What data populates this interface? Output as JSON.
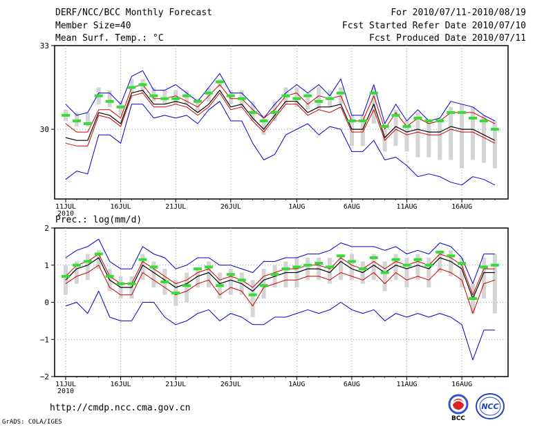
{
  "header": {
    "left": [
      "DERF/NCC/BCC Monthly Forecast",
      "Member Size=40",
      "Mean Surf. Temp.: °C"
    ],
    "right": [
      "For 2010/07/11-2010/08/19",
      "Fcst Started Refer Date 2010/07/10",
      "Fcst Produced Date 2010/07/11"
    ]
  },
  "footer": {
    "url": "http://cmdp.ncc.cma.gov.cn",
    "credit": "GrADS: COLA/IGES",
    "logo_left_text": "BCC",
    "logo_right_text": "NCC"
  },
  "colors": {
    "box": "#d4d4d4",
    "median": "#000000",
    "quartile": "#cc0000",
    "extreme": "#0000cc",
    "observed": "#33dd33",
    "grid": "#999999"
  },
  "chart_data": [
    {
      "type": "line",
      "title": "Mean Surf. Temp.: °C",
      "x_tick_labels": [
        "11JUL",
        "16JUL",
        "21JUL",
        "26JUL",
        "1AUG",
        "6AUG",
        "11AUG",
        "16AUG"
      ],
      "x_tick_days": [
        0,
        5,
        10,
        15,
        21,
        26,
        31,
        36
      ],
      "x_sublabel": "2010",
      "ylim": [
        27.5,
        33
      ],
      "y_ticks": [
        30,
        33
      ],
      "series": [
        {
          "name": "max",
          "values": [
            30.9,
            30.5,
            30.6,
            31.3,
            31.3,
            30.9,
            31.9,
            32.1,
            31.4,
            31.4,
            31.6,
            31.3,
            31.0,
            31.5,
            32.0,
            31.3,
            31.3,
            30.9,
            30.4,
            30.9,
            31.3,
            31.6,
            31.3,
            31.6,
            31.2,
            31.8,
            30.5,
            30.5,
            31.6,
            30.2,
            30.9,
            30.3,
            30.7,
            30.3,
            30.4,
            31.0,
            30.9,
            30.8,
            30.5,
            30.3
          ]
        },
        {
          "name": "upper_quartile",
          "values": [
            30.2,
            29.9,
            29.9,
            30.7,
            30.7,
            30.4,
            31.5,
            31.6,
            31.1,
            31.1,
            31.2,
            31.0,
            30.8,
            31.2,
            31.6,
            31.1,
            31.1,
            30.7,
            30.4,
            30.7,
            31.2,
            31.3,
            30.9,
            31.2,
            31.1,
            31.2,
            30.3,
            30.3,
            31.2,
            30.0,
            30.6,
            30.1,
            30.4,
            30.2,
            30.3,
            30.6,
            30.6,
            30.6,
            30.4,
            30.2
          ]
        },
        {
          "name": "median",
          "values": [
            29.7,
            29.6,
            29.6,
            30.6,
            30.5,
            30.2,
            31.3,
            31.4,
            30.9,
            30.9,
            31.0,
            30.9,
            30.6,
            30.9,
            31.4,
            30.8,
            30.9,
            30.4,
            30.0,
            30.5,
            31.0,
            31.0,
            30.6,
            30.8,
            30.8,
            30.9,
            30.0,
            30.0,
            30.9,
            29.7,
            30.1,
            29.9,
            30.0,
            29.9,
            29.9,
            30.1,
            30.0,
            30.0,
            29.8,
            29.6
          ]
        },
        {
          "name": "lower_quartile",
          "values": [
            29.5,
            29.4,
            29.4,
            30.5,
            30.4,
            30.1,
            31.2,
            31.3,
            30.8,
            30.8,
            30.9,
            30.8,
            30.5,
            30.8,
            31.3,
            30.7,
            30.8,
            30.3,
            29.9,
            30.4,
            30.9,
            30.9,
            30.5,
            30.7,
            30.6,
            30.8,
            29.9,
            29.9,
            30.7,
            29.6,
            30.0,
            29.8,
            29.9,
            29.8,
            29.8,
            30.0,
            29.9,
            29.9,
            29.7,
            29.5
          ]
        },
        {
          "name": "min",
          "values": [
            28.2,
            28.5,
            28.4,
            29.8,
            29.8,
            29.5,
            30.9,
            30.9,
            30.4,
            30.5,
            30.4,
            30.5,
            30.2,
            30.7,
            31.0,
            30.3,
            30.3,
            29.5,
            28.9,
            29.1,
            29.8,
            30.0,
            30.2,
            29.8,
            30.1,
            30.0,
            29.2,
            29.2,
            29.6,
            28.9,
            29.0,
            28.7,
            28.3,
            28.4,
            28.3,
            28.1,
            28.0,
            28.3,
            28.2,
            28.0
          ]
        },
        {
          "name": "observed",
          "values": [
            30.5,
            30.3,
            30.2,
            31.2,
            31.0,
            30.8,
            31.5,
            31.6,
            31.2,
            31.1,
            31.1,
            31.2,
            31.0,
            31.3,
            31.7,
            31.2,
            31.1,
            30.6,
            30.3,
            30.6,
            31.2,
            31.1,
            31.2,
            31.0,
            31.1,
            31.3,
            30.3,
            30.3,
            31.3,
            30.1,
            30.5,
            30.1,
            30.4,
            30.3,
            30.3,
            30.6,
            30.6,
            30.4,
            30.3,
            30.0
          ]
        }
      ],
      "box_range": {
        "low": [
          30.3,
          30.1,
          30.1,
          30.9,
          30.8,
          30.5,
          31.3,
          31.3,
          31.0,
          30.9,
          30.9,
          30.9,
          30.6,
          31.0,
          31.5,
          30.9,
          30.8,
          30.3,
          29.8,
          30.3,
          30.9,
          30.8,
          30.7,
          30.7,
          30.8,
          30.9,
          29.4,
          29.4,
          30.2,
          29.2,
          29.4,
          29.2,
          29.0,
          29.0,
          28.9,
          28.9,
          28.6,
          28.9,
          28.8,
          28.6
        ],
        "high": [
          30.7,
          30.6,
          30.6,
          31.5,
          31.4,
          31.0,
          31.8,
          31.8,
          31.5,
          31.4,
          31.4,
          31.4,
          31.1,
          31.5,
          31.8,
          31.4,
          31.4,
          31.0,
          30.5,
          31.0,
          31.5,
          31.5,
          31.3,
          31.5,
          31.4,
          31.5,
          30.5,
          30.5,
          31.5,
          30.0,
          30.7,
          30.3,
          30.6,
          30.3,
          30.4,
          30.8,
          30.9,
          30.8,
          30.5,
          30.3
        ]
      }
    },
    {
      "type": "line",
      "title": "Prec.: log(mm/d)",
      "x_tick_labels": [
        "11JUL",
        "16JUL",
        "21JUL",
        "26JUL",
        "1AUG",
        "6AUG",
        "11AUG",
        "16AUG"
      ],
      "x_tick_days": [
        0,
        5,
        10,
        15,
        21,
        26,
        31,
        36
      ],
      "x_sublabel": "2010",
      "ylim": [
        -2,
        2
      ],
      "y_ticks": [
        -2,
        -1,
        0,
        1,
        2
      ],
      "series": [
        {
          "name": "max",
          "values": [
            1.2,
            1.4,
            1.5,
            1.7,
            1.1,
            0.9,
            0.9,
            1.5,
            1.3,
            1.2,
            0.9,
            1.0,
            1.2,
            1.2,
            1.0,
            1.0,
            0.9,
            0.8,
            1.1,
            1.1,
            1.2,
            1.2,
            1.3,
            1.3,
            1.4,
            1.6,
            1.5,
            1.5,
            1.5,
            1.4,
            1.5,
            1.3,
            1.4,
            1.3,
            1.6,
            1.5,
            1.2,
            0.5,
            1.3,
            1.3
          ]
        },
        {
          "name": "upper_quartile",
          "values": [
            0.7,
            1.0,
            1.1,
            1.3,
            0.7,
            0.5,
            0.5,
            1.1,
            0.9,
            0.7,
            0.5,
            0.6,
            0.8,
            0.9,
            0.6,
            0.7,
            0.6,
            0.4,
            0.7,
            0.8,
            0.9,
            0.9,
            1.0,
            1.0,
            0.9,
            1.2,
            1.0,
            0.9,
            1.1,
            0.9,
            1.1,
            1.0,
            1.1,
            1.0,
            1.3,
            1.2,
            1.0,
            0.2,
            0.9,
            0.9
          ]
        },
        {
          "name": "median",
          "values": [
            0.6,
            0.9,
            1.0,
            1.2,
            0.6,
            0.4,
            0.4,
            1.0,
            0.8,
            0.6,
            0.4,
            0.5,
            0.7,
            0.8,
            0.5,
            0.6,
            0.5,
            0.3,
            0.6,
            0.7,
            0.8,
            0.8,
            0.9,
            0.9,
            0.8,
            1.1,
            0.9,
            0.8,
            1.0,
            0.8,
            1.0,
            0.9,
            1.0,
            0.9,
            1.2,
            1.1,
            0.9,
            0.1,
            0.8,
            0.8
          ]
        },
        {
          "name": "lower_quartile",
          "values": [
            0.5,
            0.7,
            0.8,
            1.0,
            0.4,
            0.2,
            0.2,
            0.8,
            0.6,
            0.4,
            0.2,
            0.3,
            0.5,
            0.6,
            0.2,
            0.4,
            0.3,
            -0.1,
            0.4,
            0.5,
            0.6,
            0.6,
            0.7,
            0.7,
            0.6,
            0.8,
            0.7,
            0.6,
            0.8,
            0.5,
            0.8,
            0.6,
            0.7,
            0.6,
            0.9,
            0.8,
            0.6,
            -0.3,
            0.5,
            0.6
          ]
        },
        {
          "name": "min",
          "values": [
            -0.1,
            0.0,
            -0.3,
            0.3,
            -0.4,
            -0.5,
            -0.5,
            0.0,
            0.0,
            -0.4,
            -0.6,
            -0.5,
            -0.3,
            -0.2,
            -0.5,
            -0.3,
            -0.4,
            -0.6,
            -0.6,
            -0.4,
            -0.4,
            -0.3,
            -0.2,
            -0.3,
            -0.2,
            0.0,
            -0.2,
            -0.3,
            -0.2,
            -0.5,
            -0.3,
            -0.4,
            -0.3,
            -0.4,
            -0.3,
            -0.4,
            -0.6,
            -1.55,
            -0.75,
            -0.75
          ]
        },
        {
          "name": "observed",
          "values": [
            0.7,
            1.0,
            1.1,
            1.3,
            0.7,
            0.5,
            0.5,
            1.15,
            0.95,
            0.55,
            0.25,
            0.45,
            0.9,
            0.95,
            0.45,
            0.75,
            0.6,
            0.2,
            0.45,
            0.75,
            0.9,
            0.95,
            1.0,
            1.05,
            0.95,
            1.25,
            1.1,
            0.9,
            1.2,
            0.8,
            1.15,
            1.0,
            1.15,
            1.0,
            1.35,
            1.25,
            1.05,
            0.1,
            0.95,
            1.0
          ]
        }
      ],
      "box_range": {
        "low": [
          0.2,
          0.5,
          0.6,
          0.9,
          0.3,
          0.1,
          0.1,
          0.6,
          0.4,
          0.2,
          -0.1,
          0.0,
          0.4,
          0.4,
          0.1,
          0.2,
          0.2,
          -0.4,
          0.1,
          0.4,
          0.4,
          0.4,
          0.6,
          0.6,
          0.5,
          0.6,
          0.6,
          0.5,
          0.6,
          0.3,
          0.6,
          0.4,
          0.6,
          0.4,
          0.8,
          0.7,
          0.4,
          -0.3,
          0.1,
          -0.3
        ],
        "high": [
          1.0,
          1.1,
          1.3,
          1.4,
          0.9,
          0.7,
          0.7,
          1.3,
          1.1,
          0.9,
          0.6,
          0.8,
          0.9,
          1.1,
          0.8,
          0.9,
          0.8,
          0.6,
          0.9,
          1.0,
          1.1,
          1.2,
          1.2,
          1.2,
          1.2,
          1.3,
          1.3,
          1.1,
          1.3,
          1.1,
          1.3,
          1.2,
          1.3,
          1.2,
          1.4,
          1.4,
          1.2,
          0.5,
          1.2,
          1.3
        ]
      }
    }
  ]
}
